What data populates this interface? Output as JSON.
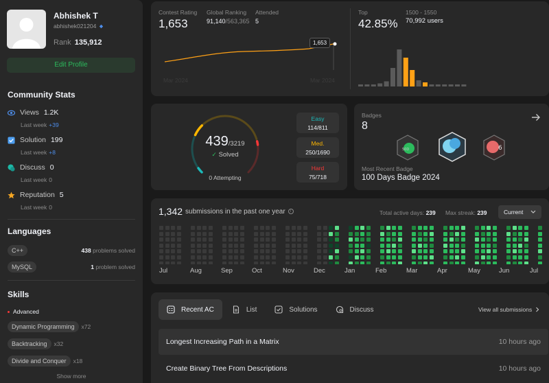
{
  "profile": {
    "name": "Abhishek T",
    "username": "abhishek021204",
    "rank_label": "Rank",
    "rank_value": "135,912",
    "edit_label": "Edit Profile"
  },
  "community": {
    "title": "Community Stats",
    "items": [
      {
        "label": "Views",
        "value": "1.2K",
        "sub": "Last week",
        "delta": "+39",
        "color": "#4d8ce8",
        "icon": "eye-icon"
      },
      {
        "label": "Solution",
        "value": "199",
        "sub": "Last week",
        "delta": "+8",
        "color": "#4d9ef0",
        "icon": "check-square-icon"
      },
      {
        "label": "Discuss",
        "value": "0",
        "sub": "Last week",
        "delta": "0",
        "color": "#1db8a6",
        "icon": "chat-icon"
      },
      {
        "label": "Reputation",
        "value": "5",
        "sub": "Last week",
        "delta": "0",
        "color": "#f5a623",
        "icon": "star-icon"
      }
    ]
  },
  "languages": {
    "title": "Languages",
    "items": [
      {
        "name": "C++",
        "count": "438",
        "suffix": "problems solved"
      },
      {
        "name": "MySQL",
        "count": "1",
        "suffix": "problem solved"
      }
    ]
  },
  "skills": {
    "title": "Skills",
    "level": "Advanced",
    "items": [
      {
        "name": "Dynamic Programming",
        "count": "x72"
      },
      {
        "name": "Backtracking",
        "count": "x32"
      },
      {
        "name": "Divide and Conquer",
        "count": "x18"
      }
    ],
    "show_more": "Show more"
  },
  "rating": {
    "contest_label": "Contest Rating",
    "contest_value": "1,653",
    "global_label": "Global Ranking",
    "global_value": "91,140",
    "global_total": "/563,365",
    "attended_label": "Attended",
    "attended_value": "5",
    "tooltip": "1,653",
    "axis_start": "Mar 2024",
    "axis_end": "Mar 2024",
    "top_label": "Top",
    "top_value": "42.85%",
    "range_label": "1500 - 1550",
    "range_users": "70,992 users"
  },
  "histogram": [
    2,
    2,
    2,
    3,
    5,
    18,
    36,
    28,
    16,
    6,
    4,
    2,
    2,
    2,
    2,
    2,
    2
  ],
  "highlight_bins": [
    7,
    8,
    10
  ],
  "problems": {
    "solved": "439",
    "total": "/3219",
    "solved_label": "Solved",
    "attempting": "0 Attempting",
    "easy_label": "Easy",
    "easy_value": "114/811",
    "medium_label": "Med.",
    "medium_value": "250/1690",
    "hard_label": "Hard",
    "hard_value": "75/718",
    "easy_solved": 114,
    "easy_total": 811,
    "medium_solved": 250,
    "medium_total": 1690,
    "hard_solved": 75,
    "hard_total": 718
  },
  "badges": {
    "title": "Badges",
    "count": "8",
    "recent_label": "Most Recent Badge",
    "recent_name": "100 Days Badge 2024",
    "badge_texts": [
      "50D",
      "",
      "6"
    ]
  },
  "submissions": {
    "count": "1,342",
    "text": "submissions in the past one year",
    "active_label": "Total active days:",
    "active_value": "239",
    "streak_label": "Max streak:",
    "streak_value": "239",
    "select_value": "Current",
    "months": [
      "Jul",
      "Aug",
      "Sep",
      "Oct",
      "Nov",
      "Dec",
      "Jan",
      "Feb",
      "Mar",
      "Apr",
      "May",
      "Jun",
      "Jul"
    ]
  },
  "heatmap_intensity": [
    0,
    0,
    0,
    0,
    0,
    0,
    0,
    0,
    0,
    0,
    0,
    0,
    0,
    0,
    0,
    0,
    0,
    0,
    0,
    0,
    0,
    0,
    0,
    0,
    0,
    0,
    0,
    1,
    2,
    2,
    2,
    3,
    3,
    2,
    2,
    3,
    3,
    3,
    3,
    2,
    3,
    3,
    3,
    3,
    3,
    3,
    3,
    3,
    3,
    3,
    3,
    3,
    3,
    3,
    3,
    3,
    3,
    3,
    3,
    3,
    3
  ],
  "recent": {
    "tabs": [
      "Recent AC",
      "List",
      "Solutions",
      "Discuss"
    ],
    "view_all": "View all submissions",
    "items": [
      {
        "title": "Longest Increasing Path in a Matrix",
        "time": "10 hours ago"
      },
      {
        "title": "Create Binary Tree From Descriptions",
        "time": "10 hours ago"
      }
    ]
  },
  "colors": {
    "accent_green": "#2cbb5d",
    "easy": "#1cbaba",
    "medium": "#ffb700",
    "hard": "#f63737",
    "rating_line": "#ffa116"
  }
}
